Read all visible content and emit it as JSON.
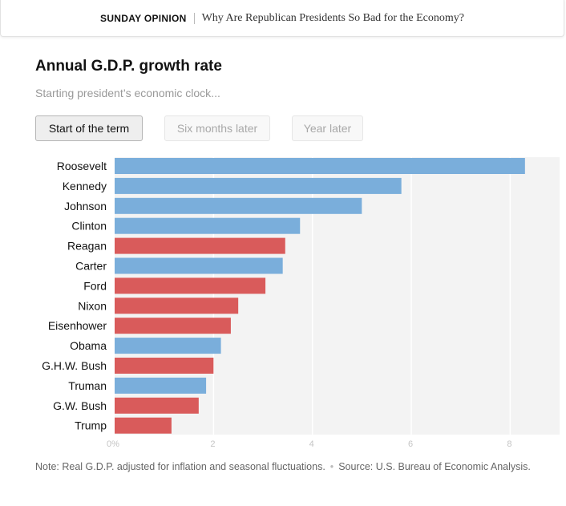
{
  "header": {
    "kicker": "SUNDAY OPINION",
    "headline": "Why Are Republican Presidents So Bad for the Economy?"
  },
  "chart": {
    "title": "Annual G.D.P. growth rate",
    "subtitle": "Starting president’s economic clock...",
    "toggles": [
      {
        "label": "Start of the term",
        "active": true
      },
      {
        "label": "Six months later",
        "active": false
      },
      {
        "label": "Year later",
        "active": false
      }
    ]
  },
  "colors": {
    "democrat": "#7aaedb",
    "republican": "#d95b5b",
    "plot_background": "#f3f3f3"
  },
  "chart_data": {
    "type": "bar",
    "orientation": "horizontal",
    "title": "Annual G.D.P. growth rate",
    "categories": [
      "Roosevelt",
      "Kennedy",
      "Johnson",
      "Clinton",
      "Reagan",
      "Carter",
      "Ford",
      "Nixon",
      "Eisenhower",
      "Obama",
      "G.H.W. Bush",
      "Truman",
      "G.W. Bush",
      "Trump"
    ],
    "values": [
      8.3,
      5.8,
      5.0,
      3.75,
      3.45,
      3.4,
      3.05,
      2.5,
      2.35,
      2.15,
      2.0,
      1.85,
      1.7,
      1.15
    ],
    "party": [
      "D",
      "D",
      "D",
      "D",
      "R",
      "D",
      "R",
      "R",
      "R",
      "D",
      "R",
      "D",
      "R",
      "R"
    ],
    "xlim": [
      0,
      9
    ],
    "xticks": [
      {
        "value": 0,
        "label": "0%"
      },
      {
        "value": 2,
        "label": "2"
      },
      {
        "value": 4,
        "label": "4"
      },
      {
        "value": 6,
        "label": "6"
      },
      {
        "value": 8,
        "label": "8"
      }
    ],
    "grid": "vertical",
    "xlabel": "",
    "ylabel": ""
  },
  "footer": {
    "note": "Note: Real G.D.P. adjusted for inflation and seasonal fluctuations.",
    "source": "Source: U.S. Bureau of Economic Analysis."
  }
}
